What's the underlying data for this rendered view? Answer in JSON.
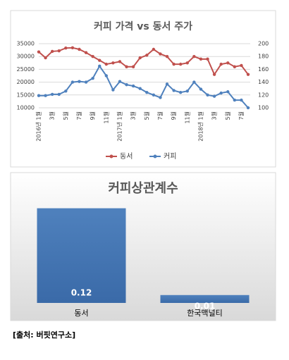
{
  "chart_data": [
    {
      "type": "line",
      "title": "커피 가격 vs 동서 주가",
      "categories": [
        "2016년 1월",
        null,
        "3월",
        null,
        "5월",
        null,
        "7월",
        null,
        "9월",
        null,
        "11월",
        null,
        "2017년 1월",
        null,
        "3월",
        null,
        "5월",
        null,
        "7월",
        null,
        "9월",
        null,
        "11월",
        null,
        "2018년 1월",
        null,
        "3월",
        null,
        "5월",
        null,
        "7월",
        null
      ],
      "series": [
        {
          "name": "동서",
          "color": "#c0504d",
          "values": [
            31800,
            29500,
            32000,
            32200,
            33300,
            33400,
            32800,
            31500,
            30000,
            28500,
            27000,
            27500,
            28000,
            26000,
            26000,
            29500,
            30500,
            32800,
            31000,
            30000,
            27000,
            27000,
            27500,
            30000,
            29000,
            29000,
            23000,
            27000,
            27500,
            26000,
            26500,
            23000
          ]
        },
        {
          "name": "커피",
          "color": "#4f81bd",
          "axis": "y2",
          "values": [
            119,
            119,
            121,
            121,
            126,
            140,
            141,
            140,
            146,
            165,
            150,
            128,
            141,
            136,
            134,
            130,
            124,
            120,
            116,
            137,
            127,
            124,
            126,
            140,
            129,
            120,
            118,
            123,
            125,
            112,
            112,
            100
          ]
        }
      ],
      "ylim": [
        10000,
        35000
      ],
      "yticks": [
        10000,
        15000,
        20000,
        25000,
        30000,
        35000
      ],
      "y2lim": [
        100,
        200
      ],
      "y2ticks": [
        100,
        120,
        140,
        160,
        180,
        200
      ],
      "legend": "bottom"
    },
    {
      "type": "bar",
      "title": "커피상관계수",
      "categories": [
        "동서",
        "한국맥널티"
      ],
      "values": [
        0.12,
        0.01
      ],
      "value_labels": [
        "0.12",
        "0.01"
      ],
      "color": "#4f81bd",
      "ylim": [
        0,
        0.125
      ]
    }
  ],
  "source": "[출처: 버핏연구소]"
}
